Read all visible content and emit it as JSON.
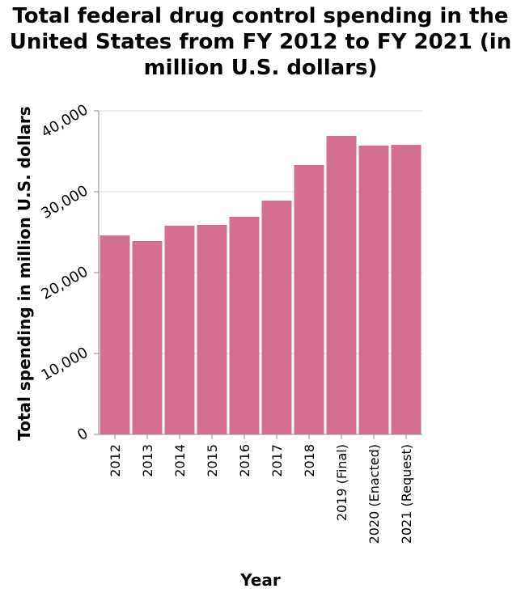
{
  "title_lines": [
    "Total federal drug control spending in the",
    "United States from FY 2012 to FY 2021 (in",
    "million U.S. dollars)"
  ],
  "colors": {
    "bar": "#d46f93",
    "grid": "#dddddd",
    "axis": "#888888",
    "text": "#000000"
  },
  "chart_data": {
    "type": "bar",
    "title": "Total federal drug control spending in the United States from FY 2012 to FY 2021 (in million U.S. dollars)",
    "xlabel": "Year",
    "ylabel": "Total spending in million U.S. dollars",
    "categories": [
      "2012",
      "2013",
      "2014",
      "2015",
      "2016",
      "2017",
      "2018",
      "2019 (Final)",
      "2020 (Enacted)",
      "2021 (Request)"
    ],
    "values": [
      24600,
      23900,
      25800,
      25900,
      26900,
      28900,
      33300,
      36900,
      35700,
      35800
    ],
    "ylim": [
      0,
      40000
    ],
    "yticks": [
      0,
      10000,
      20000,
      30000,
      40000
    ],
    "ytick_labels": [
      "0",
      "10,000",
      "20,000",
      "30,000",
      "40,000"
    ],
    "grid": true,
    "legend": "none"
  }
}
